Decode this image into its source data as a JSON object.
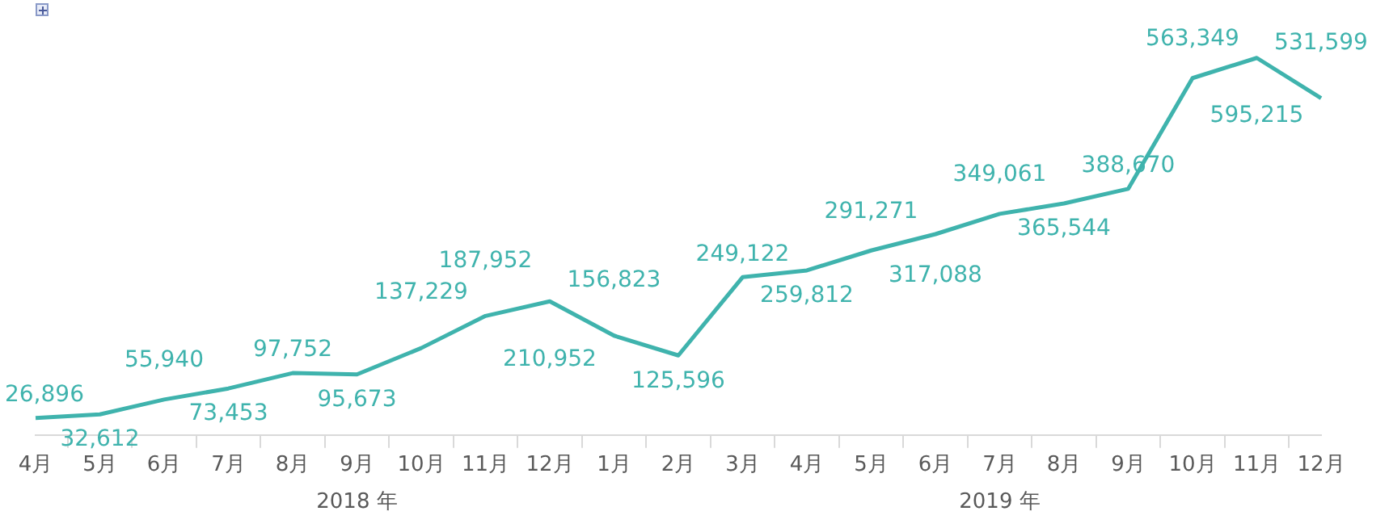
{
  "chart_data": {
    "type": "line",
    "categories": [
      "4月",
      "5月",
      "6月",
      "7月",
      "8月",
      "9月",
      "10月",
      "11月",
      "12月",
      "1月",
      "2月",
      "3月",
      "4月",
      "5月",
      "6月",
      "7月",
      "8月",
      "9月",
      "10月",
      "11月",
      "12月"
    ],
    "series": [
      {
        "color": "#3fb3ad",
        "values": [
          26896,
          32612,
          55940,
          73453,
          97752,
          95673,
          137229,
          187952,
          210952,
          156823,
          125596,
          249122,
          259812,
          291271,
          317088,
          349061,
          365544,
          388670,
          563349,
          595215,
          531599
        ],
        "value_labels": [
          "26,896",
          "32,612",
          "55,940",
          "73,453",
          "97,752",
          "95,673",
          "137,229",
          "187,952",
          "210,952",
          "156,823",
          "125,596",
          "249,122",
          "259,812",
          "291,271",
          "317,088",
          "349,061",
          "365,544",
          "388,670",
          "563,349",
          "595,215",
          "531,599"
        ]
      }
    ],
    "marker": "none",
    "legend": false,
    "grid": false,
    "annotations": [
      "2018 年",
      "2019 年"
    ]
  }
}
